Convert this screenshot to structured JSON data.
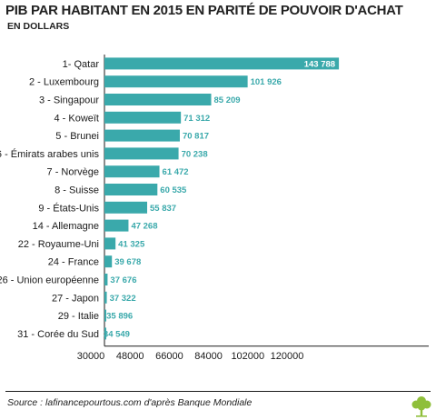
{
  "header": {
    "title": "PIB PAR HABITANT EN 2015 EN PARITÉ DE POUVOIR D'ACHAT",
    "subtitle": "EN  DOLLARS"
  },
  "footer": {
    "source": "Source : lafinancepourtous.com d'après Banque Mondiale"
  },
  "colors": {
    "bar": "#3aa9ab",
    "label_inside": "#ffffff",
    "label_outside": "#3aa9ab",
    "logo": "#8fbf3a"
  },
  "icons": {
    "logo": "tree-icon"
  },
  "chart_data": {
    "type": "bar",
    "orientation": "horizontal",
    "title": "PIB PAR HABITANT EN 2015 EN PARITÉ DE POUVOIR D'ACHAT",
    "subtitle": "EN  DOLLARS",
    "categories": [
      "1- Qatar",
      "2 - Luxembourg",
      "3 - Singapour",
      "4 - Koweït",
      "5 - Brunei",
      "6 - Émirats arabes unis",
      "7 - Norvège",
      "8 - Suisse",
      "9 - États-Unis",
      "14 - Allemagne",
      "22 - Royaume-Uni",
      "24 - France",
      "26 - Union européenne",
      "27 - Japon",
      "29 - Italie",
      "31 - Corée du Sud"
    ],
    "values": [
      143788,
      101926,
      85209,
      71312,
      70817,
      70238,
      61472,
      60535,
      55837,
      47268,
      41325,
      39678,
      37676,
      37322,
      35896,
      34549
    ],
    "value_labels": [
      "143 788",
      "101 926",
      "85 209",
      "71 312",
      "70 817",
      "70 238",
      "61 472",
      "60 535",
      "55 837",
      "47 268",
      "41 325",
      "39 678",
      "37 676",
      "37 322",
      "35 896",
      "34 549"
    ],
    "x_ticks": [
      30000,
      48000,
      66000,
      84000,
      102000,
      120000
    ],
    "x_tick_labels": [
      "30000",
      "48000",
      "66000",
      "84000",
      "102000",
      "120000"
    ],
    "xlim": [
      30000,
      144000
    ],
    "grid": false,
    "legend": "none"
  }
}
